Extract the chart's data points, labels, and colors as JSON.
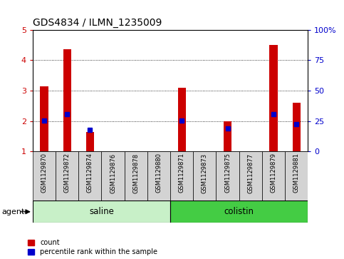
{
  "title": "GDS4834 / ILMN_1235009",
  "samples": [
    "GSM1129870",
    "GSM1129872",
    "GSM1129874",
    "GSM1129876",
    "GSM1129878",
    "GSM1129880",
    "GSM1129871",
    "GSM1129873",
    "GSM1129875",
    "GSM1129877",
    "GSM1129879",
    "GSM1129881"
  ],
  "count_values": [
    3.15,
    4.35,
    1.65,
    1.0,
    1.0,
    1.0,
    3.1,
    1.0,
    2.0,
    1.0,
    4.5,
    2.6
  ],
  "percentile_values": [
    2.02,
    2.22,
    1.72,
    null,
    null,
    null,
    2.02,
    null,
    1.77,
    null,
    2.22,
    1.9
  ],
  "group_data": [
    {
      "label": "saline",
      "start": 0,
      "end": 5,
      "color": "#c8f0c8"
    },
    {
      "label": "colistin",
      "start": 6,
      "end": 11,
      "color": "#44cc44"
    }
  ],
  "bar_color": "#cc0000",
  "percentile_color": "#0000cc",
  "ylim_left": [
    1,
    5
  ],
  "ylim_right": [
    0,
    100
  ],
  "yticks_left": [
    1,
    2,
    3,
    4,
    5
  ],
  "yticks_right": [
    0,
    25,
    50,
    75,
    100
  ],
  "ylabel_left_color": "#cc0000",
  "ylabel_right_color": "#0000cc",
  "agent_label": "agent",
  "background_color": "#ffffff",
  "bar_width": 0.35,
  "sample_box_color": "#d3d3d3",
  "title_fontsize": 10
}
